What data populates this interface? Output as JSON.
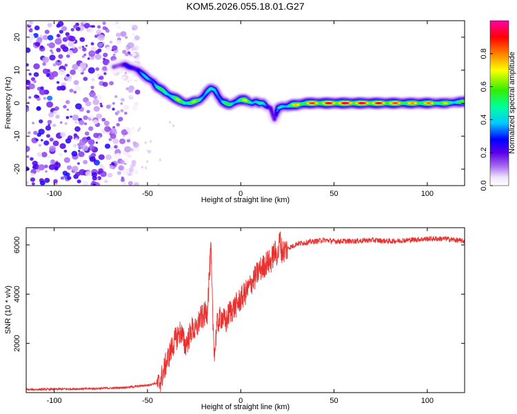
{
  "title": "KOM5.2026.055.18.01.G27",
  "chart_data": [
    {
      "type": "heatmap",
      "name": "spectrogram",
      "xlabel": "Height of straight line (km)",
      "ylabel": "Frequency (Hz)",
      "xlim": [
        -115,
        120
      ],
      "ylim": [
        -25,
        25
      ],
      "xticks": [
        -100,
        -50,
        0,
        50,
        100
      ],
      "yticks": [
        -20,
        -10,
        0,
        10,
        20
      ],
      "colorbar": {
        "label": "Normalized spectral amplitude",
        "range": [
          0,
          1
        ],
        "ticks": [
          0.0,
          0.2,
          0.4,
          0.6,
          0.8
        ],
        "tick_labels": [
          "0.0",
          "0.2",
          "0.4",
          "0.6",
          "0.8"
        ]
      },
      "ridge": {
        "height_km": [
          -68,
          -65,
          -62,
          -60,
          -57,
          -55,
          -52,
          -50,
          -47,
          -45,
          -42,
          -40,
          -37,
          -35,
          -32,
          -30,
          -27,
          -25,
          -22,
          -20,
          -18,
          -16,
          -14,
          -12,
          -10,
          -8,
          -6,
          -4,
          -2,
          0,
          2,
          4,
          6,
          8,
          10,
          12,
          14,
          16,
          17,
          18,
          20,
          22,
          25,
          28,
          30,
          35,
          40,
          50,
          60,
          70,
          80,
          90,
          100,
          110,
          120
        ],
        "frequency_hz": [
          11,
          11.5,
          11.7,
          11,
          10.5,
          10,
          8.5,
          7.5,
          6.5,
          5,
          4,
          3,
          2,
          1.5,
          0.5,
          0,
          0,
          0.5,
          1,
          2,
          3.5,
          4.5,
          4,
          2,
          0.5,
          0,
          -0.5,
          0,
          0.5,
          1,
          1,
          0.5,
          0,
          0.5,
          0,
          0,
          -1,
          -1.5,
          -3,
          -5,
          -1.5,
          -1,
          -1,
          -0.5,
          -0.5,
          0,
          0,
          0,
          0,
          0,
          0,
          0,
          0,
          0,
          0.5
        ],
        "amplitude": [
          0.15,
          0.2,
          0.25,
          0.25,
          0.3,
          0.35,
          0.35,
          0.4,
          0.45,
          0.5,
          0.5,
          0.55,
          0.55,
          0.6,
          0.6,
          0.65,
          0.6,
          0.6,
          0.55,
          0.5,
          0.45,
          0.4,
          0.4,
          0.45,
          0.5,
          0.55,
          0.5,
          0.45,
          0.55,
          0.6,
          0.65,
          0.6,
          0.55,
          0.5,
          0.45,
          0.4,
          0.35,
          0.3,
          0.25,
          0.2,
          0.35,
          0.45,
          0.55,
          0.65,
          0.7,
          0.75,
          0.8,
          0.85,
          0.85,
          0.85,
          0.8,
          0.7,
          0.75,
          0.6,
          0.55
        ]
      },
      "noise_region_km": [
        -115,
        -55
      ]
    },
    {
      "type": "line",
      "name": "snr",
      "xlabel": "Height of straight line (km)",
      "ylabel": "SNR (10 * v/v)",
      "xlim": [
        -115,
        120
      ],
      "ylim": [
        0,
        6700
      ],
      "xticks": [
        -100,
        -50,
        0,
        50,
        100
      ],
      "yticks": [
        2000,
        4000,
        6000
      ],
      "color": "#e8312e",
      "x": [
        -115,
        -100,
        -90,
        -80,
        -70,
        -60,
        -55,
        -50,
        -46,
        -44,
        -42,
        -40,
        -38,
        -36,
        -34,
        -32,
        -30,
        -28,
        -26,
        -24,
        -22,
        -20,
        -18,
        -17,
        -16,
        -15,
        -14,
        -13,
        -12,
        -10,
        -8,
        -6,
        -4,
        -2,
        0,
        2,
        4,
        6,
        8,
        10,
        12,
        14,
        16,
        18,
        20,
        21,
        22,
        24,
        26,
        28,
        30,
        35,
        40,
        45,
        50,
        60,
        70,
        80,
        90,
        100,
        110,
        120
      ],
      "y": [
        120,
        140,
        150,
        160,
        180,
        220,
        260,
        300,
        380,
        330,
        700,
        1200,
        1600,
        2000,
        2300,
        2500,
        1900,
        2200,
        2600,
        2500,
        3000,
        3100,
        3300,
        4600,
        5800,
        3000,
        1500,
        2600,
        2900,
        3100,
        2800,
        3300,
        3400,
        3600,
        3800,
        4000,
        4200,
        4500,
        4700,
        5000,
        5100,
        5300,
        5300,
        5700,
        5600,
        6300,
        5700,
        5800,
        5900,
        5950,
        6050,
        6100,
        6150,
        6200,
        6150,
        6150,
        6200,
        6150,
        6200,
        6250,
        6250,
        6150
      ]
    }
  ]
}
